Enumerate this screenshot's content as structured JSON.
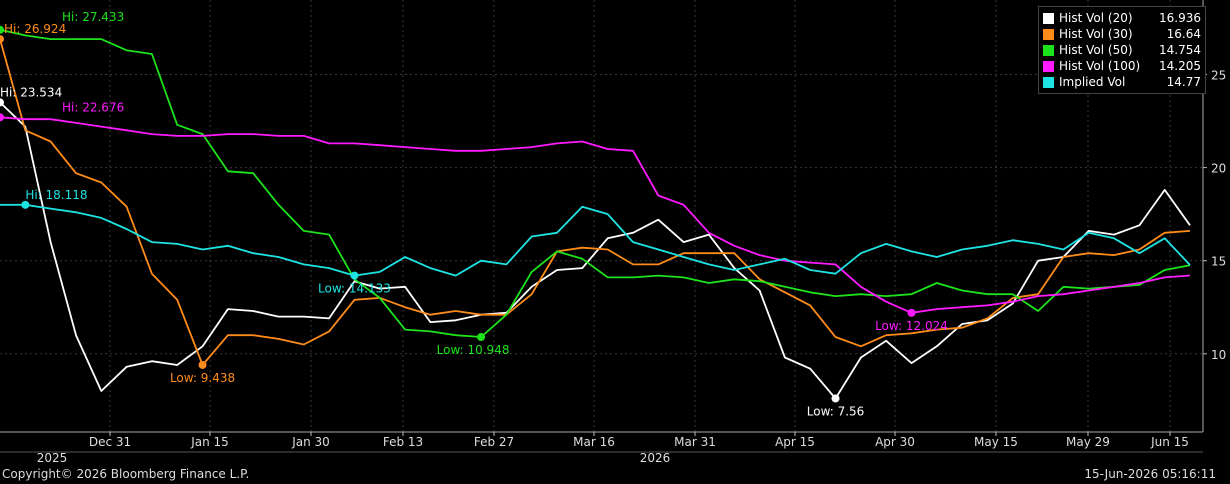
{
  "chart_data": {
    "type": "line",
    "y_axis": {
      "position": "right",
      "ticks": [
        10,
        15,
        20,
        25
      ],
      "ylim": [
        5.8,
        29.0
      ]
    },
    "x_axis": {
      "ticks": [
        "Dec 31",
        "Jan 15",
        "Jan 30",
        "Feb 13",
        "Feb 27",
        "Mar 16",
        "Mar 31",
        "Apr 15",
        "Apr 30",
        "May 15",
        "May 29",
        "Jun 15"
      ],
      "years": [
        "2025",
        "2026"
      ]
    },
    "grid": true,
    "legend_position": "top-right",
    "x": [
      0,
      4,
      8,
      12,
      16,
      20,
      24,
      28,
      32,
      36,
      40,
      44,
      48,
      52,
      56,
      60,
      64,
      68,
      72,
      76,
      80,
      84,
      88,
      92,
      96,
      100,
      104,
      108,
      112,
      116,
      120,
      124,
      128,
      132,
      136,
      140,
      144,
      148,
      152,
      156,
      160,
      164,
      168,
      172,
      176,
      180,
      184,
      188
    ],
    "series": [
      {
        "name": "Hist Vol (20)",
        "color": "#ffffff",
        "last": "16.936",
        "values": [
          23.5,
          22.2,
          16.0,
          11.0,
          8.0,
          9.3,
          9.6,
          9.4,
          10.4,
          12.4,
          12.3,
          12.0,
          12.0,
          11.9,
          13.9,
          13.5,
          13.6,
          11.7,
          11.8,
          12.1,
          12.2,
          13.6,
          14.5,
          14.6,
          16.2,
          16.5,
          17.2,
          16.0,
          16.4,
          14.6,
          13.4,
          9.8,
          9.2,
          7.6,
          9.8,
          10.7,
          9.5,
          10.4,
          11.6,
          11.8,
          12.7,
          15.0,
          15.2,
          16.6,
          16.4,
          16.9,
          18.8,
          16.9
        ]
      },
      {
        "name": "Hist Vol (30)",
        "color": "#ff8c1a",
        "last": "16.64",
        "values": [
          26.9,
          22.0,
          21.4,
          19.7,
          19.2,
          17.9,
          14.3,
          12.9,
          9.4,
          11.0,
          11.0,
          10.8,
          10.5,
          11.2,
          12.9,
          13.0,
          12.5,
          12.1,
          12.3,
          12.1,
          12.1,
          13.2,
          15.5,
          15.7,
          15.6,
          14.8,
          14.8,
          15.4,
          15.4,
          15.4,
          14.0,
          13.3,
          12.6,
          10.9,
          10.4,
          11.0,
          11.1,
          11.3,
          11.4,
          11.9,
          13.0,
          13.2,
          15.2,
          15.4,
          15.3,
          15.6,
          16.5,
          16.6
        ]
      },
      {
        "name": "Hist Vol (50)",
        "color": "#1de31d",
        "last": "14.754",
        "values": [
          27.4,
          27.1,
          26.9,
          26.9,
          26.9,
          26.3,
          26.1,
          22.3,
          21.8,
          19.8,
          19.7,
          18.0,
          16.6,
          16.4,
          14.0,
          13.0,
          11.3,
          11.2,
          11.0,
          10.9,
          12.1,
          14.4,
          15.5,
          15.1,
          14.1,
          14.1,
          14.2,
          14.1,
          13.8,
          14.0,
          13.9,
          13.6,
          13.3,
          13.1,
          13.2,
          13.1,
          13.2,
          13.8,
          13.4,
          13.2,
          13.2,
          12.3,
          13.6,
          13.5,
          13.6,
          13.7,
          14.5,
          14.754
        ]
      },
      {
        "name": "Hist Vol (100)",
        "color": "#ff1aff",
        "last": "14.205",
        "values": [
          22.7,
          22.6,
          22.6,
          22.4,
          22.2,
          22.0,
          21.8,
          21.7,
          21.7,
          21.8,
          21.8,
          21.7,
          21.7,
          21.3,
          21.3,
          21.2,
          21.1,
          21.0,
          20.9,
          20.9,
          21.0,
          21.1,
          21.3,
          21.4,
          21.0,
          20.9,
          18.5,
          18.0,
          16.5,
          15.8,
          15.3,
          15.0,
          14.9,
          14.8,
          13.6,
          12.8,
          12.2,
          12.4,
          12.5,
          12.6,
          12.8,
          13.1,
          13.2,
          13.4,
          13.6,
          13.8,
          14.1,
          14.205
        ]
      },
      {
        "name": "Implied Vol",
        "color": "#1de3e3",
        "last": "14.77",
        "values": [
          18.0,
          18.0,
          17.8,
          17.6,
          17.3,
          16.7,
          16.0,
          15.9,
          15.6,
          15.8,
          15.4,
          15.2,
          14.8,
          14.6,
          14.2,
          14.4,
          15.2,
          14.6,
          14.2,
          15.0,
          14.8,
          16.3,
          16.5,
          17.9,
          17.5,
          16.0,
          15.6,
          15.2,
          14.8,
          14.5,
          14.8,
          15.1,
          14.5,
          14.3,
          15.4,
          15.9,
          15.5,
          15.2,
          15.6,
          15.8,
          16.1,
          15.9,
          15.6,
          16.5,
          16.2,
          15.4,
          16.2,
          14.77
        ]
      }
    ],
    "annotations": [
      {
        "series": 0,
        "index": 0,
        "label": "Hi: 23.534",
        "anchor": "start",
        "dx": 0,
        "dy": -6
      },
      {
        "series": 0,
        "index": 33,
        "label": "Low: 7.56",
        "anchor": "middle",
        "dx": 0,
        "dy": 17
      },
      {
        "series": 1,
        "index": 0,
        "label": "Hi: 26.924",
        "anchor": "start",
        "dx": 4,
        "dy": -6
      },
      {
        "series": 1,
        "index": 8,
        "label": "Low: 9.438",
        "anchor": "middle",
        "dx": 0,
        "dy": 17
      },
      {
        "series": 2,
        "index": 0,
        "label": "Hi: 27.433",
        "anchor": "start",
        "dx": 62,
        "dy": -9
      },
      {
        "series": 2,
        "index": 19,
        "label": "Low: 10.948",
        "anchor": "middle",
        "dx": -8,
        "dy": 17
      },
      {
        "series": 3,
        "index": 0,
        "label": "Hi: 22.676",
        "anchor": "start",
        "dx": 62,
        "dy": -6
      },
      {
        "series": 3,
        "index": 36,
        "label": "Low: 12.024",
        "anchor": "middle",
        "dx": 0,
        "dy": 17
      },
      {
        "series": 4,
        "index": 1,
        "label": "Hi: 18.118",
        "anchor": "start",
        "dx": 0,
        "dy": -6
      },
      {
        "series": 4,
        "index": 14,
        "label": "Low: 14.133",
        "anchor": "middle",
        "dx": 0,
        "dy": 17
      }
    ]
  },
  "footer": {
    "copyright": "Copyright© 2026 Bloomberg Finance L.P.",
    "timestamp": "15-Jun-2026 05:16:11"
  }
}
